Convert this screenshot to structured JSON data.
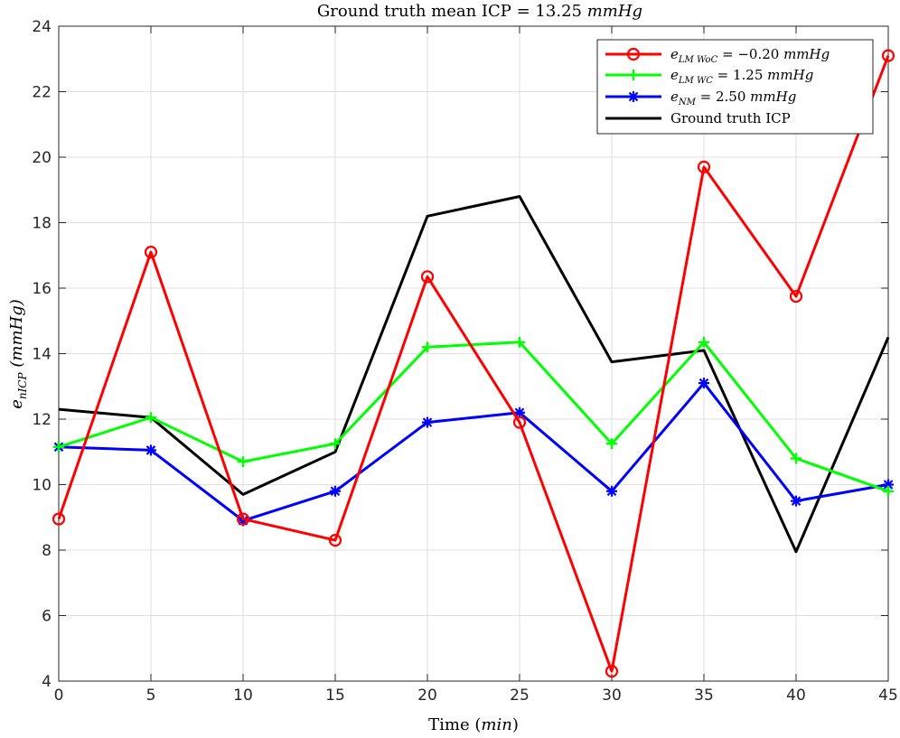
{
  "chart_data": {
    "type": "line",
    "title": "Ground truth mean ICP = 13.25 mmHg",
    "xlabel": "Time (min)",
    "ylabel": "e_nICP (mmHg)",
    "xlim": [
      0,
      45
    ],
    "ylim": [
      4,
      24
    ],
    "x_ticks": [
      0,
      5,
      10,
      15,
      20,
      25,
      30,
      35,
      40,
      45
    ],
    "y_ticks": [
      4,
      6,
      8,
      10,
      12,
      14,
      16,
      18,
      20,
      22,
      24
    ],
    "grid": true,
    "legend_position": "top-right",
    "x": [
      0,
      5,
      10,
      15,
      20,
      25,
      30,
      35,
      40,
      45
    ],
    "series": [
      {
        "name": "e_LM WoC = -0.20 mmHg",
        "color": "#ff0000",
        "marker": "circle",
        "values": [
          8.95,
          17.1,
          8.95,
          8.3,
          16.35,
          11.9,
          4.3,
          19.7,
          15.75,
          23.1
        ]
      },
      {
        "name": "e_LM WC = 1.25 mmHg",
        "color": "#00ff00",
        "marker": "plus",
        "values": [
          11.15,
          12.05,
          10.7,
          11.25,
          14.2,
          14.35,
          11.25,
          14.35,
          10.8,
          9.8
        ]
      },
      {
        "name": "e_NM = 2.50 mmHg",
        "color": "#0000ff",
        "marker": "asterisk",
        "values": [
          11.15,
          11.05,
          8.9,
          9.8,
          11.9,
          12.2,
          9.8,
          13.1,
          9.5,
          10.0
        ]
      },
      {
        "name": "Ground truth ICP",
        "color": "#000000",
        "marker": "none",
        "values": [
          12.3,
          12.05,
          9.7,
          11.0,
          18.2,
          18.8,
          13.75,
          14.1,
          7.95,
          14.5
        ]
      }
    ]
  },
  "text": {
    "title_prefix": "Ground truth mean ICP = 13.25 ",
    "title_unit": "mmHg",
    "xlabel_prefix": "Time (",
    "xlabel_unit": "min",
    "xlabel_suffix": ")",
    "ylabel_var": "e",
    "ylabel_sub": "nICP",
    "ylabel_unit": " (mmHg)",
    "legend": [
      {
        "var": "e",
        "sub": "LM WoC",
        "rest": " = −0.20  ",
        "unit": "mmHg"
      },
      {
        "var": "e",
        "sub": "LM WC",
        "rest": " = 1.25  ",
        "unit": "mmHg"
      },
      {
        "var": "e",
        "sub": "NM",
        "rest": " = 2.50  ",
        "unit": "mmHg"
      },
      {
        "var": "",
        "sub": "",
        "rest": "Ground truth ICP",
        "unit": ""
      }
    ]
  }
}
